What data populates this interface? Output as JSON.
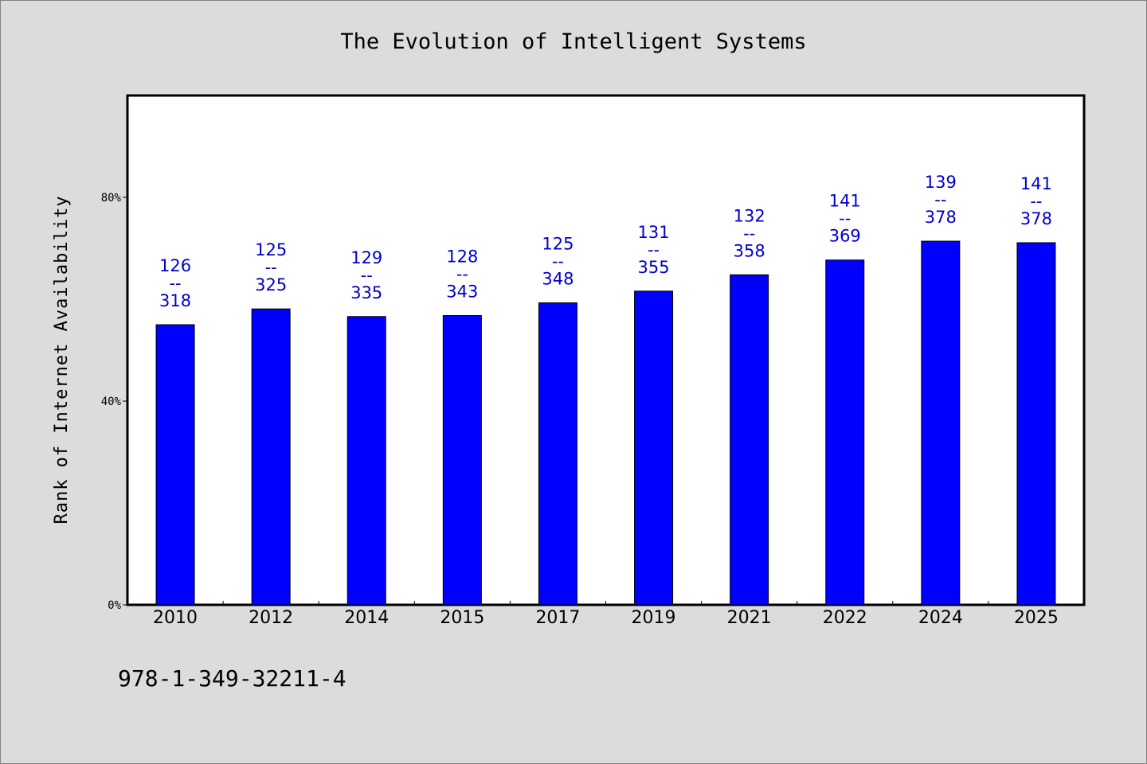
{
  "chart_data": {
    "type": "bar",
    "title": "The Evolution of Intelligent Systems",
    "xlabel": "",
    "ylabel": "Rank of Internet Availability",
    "categories": [
      "2010",
      "2012",
      "2014",
      "2015",
      "2017",
      "2019",
      "2021",
      "2022",
      "2024",
      "2025"
    ],
    "values": [
      55.0,
      58.1,
      56.6,
      56.8,
      59.3,
      61.6,
      64.8,
      67.7,
      71.4,
      71.1
    ],
    "labels_top": [
      "126",
      "125",
      "129",
      "128",
      "125",
      "131",
      "132",
      "141",
      "139",
      "141"
    ],
    "labels_sep": "--",
    "labels_bottom": [
      "318",
      "325",
      "335",
      "343",
      "348",
      "355",
      "358",
      "369",
      "378",
      "378"
    ],
    "ylim": [
      0,
      100
    ],
    "yticks": [
      0,
      40,
      80
    ],
    "ytick_labels": [
      "0%",
      "40%",
      "80%"
    ],
    "bar_color": "#0000ff",
    "label_color": "#0000cc",
    "grid": false,
    "legend": "none"
  },
  "footer_text": "978-1-349-32211-4"
}
